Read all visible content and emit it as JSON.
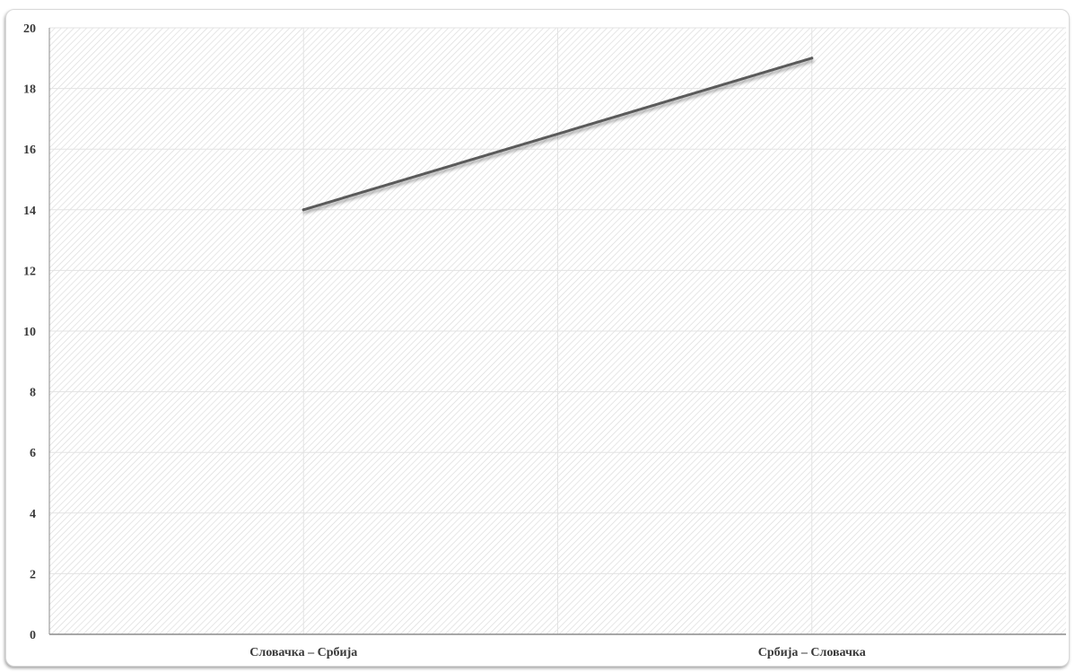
{
  "chart_data": {
    "type": "line",
    "categories": [
      "Словачка – Србија",
      "Србија – Словачка"
    ],
    "series": [
      {
        "values": [
          14,
          19
        ]
      }
    ],
    "ylim": [
      0,
      20
    ],
    "yticks": [
      "0",
      "2",
      "4",
      "6",
      "8",
      "10",
      "12",
      "14",
      "16",
      "18",
      "20"
    ],
    "grid": true,
    "legend": "none",
    "colors": {
      "line": "#5a5a5a",
      "grid": "#e3e3e3",
      "axis": "#8c8c8c"
    }
  }
}
